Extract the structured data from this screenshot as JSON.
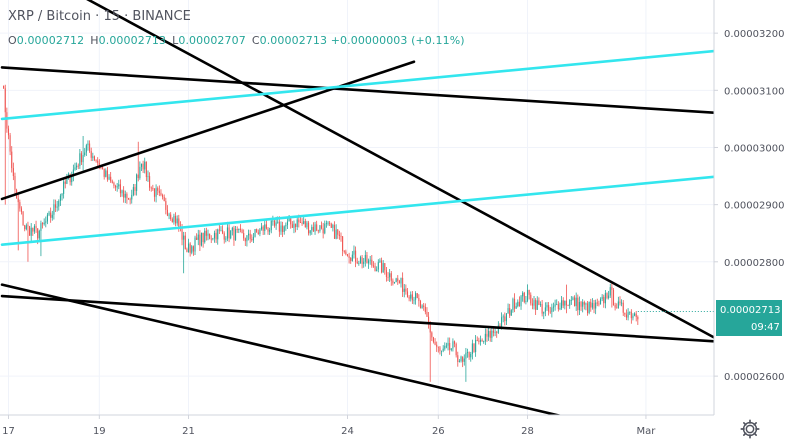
{
  "header": {
    "symbol": "XRP / Bitcoin",
    "interval": "15",
    "exchange": "BINANCE",
    "separator": "·"
  },
  "ohlc": {
    "o_label": "O",
    "o_value": "0.00002712",
    "h_label": "H",
    "h_value": "0.00002713",
    "l_label": "L",
    "l_value": "0.00002707",
    "c_label": "C",
    "c_value": "0.00002713",
    "change": "+0.00000003 (+0.11%)"
  },
  "price_badge": {
    "price": "0.00002713",
    "countdown": "09:47"
  },
  "colors": {
    "up": "#26a69a",
    "down": "#ef5350",
    "trendline": "#000000",
    "channel": "#33e6ee",
    "badge": "#26a69a",
    "axis_text": "#50535e"
  },
  "settings_icon": "gear-icon",
  "chart_data": {
    "type": "candlestick",
    "title": "XRP / Bitcoin · 15 · BINANCE",
    "y_ticks": [
      "0.00003200",
      "0.00003100",
      "0.00003000",
      "0.00002900",
      "0.00002800",
      "0.00002600"
    ],
    "y_tick_values": [
      3.2e-05,
      3.1e-05,
      3e-05,
      2.9e-05,
      2.8e-05,
      2.6e-05
    ],
    "x_ticks": [
      "17",
      "19",
      "21",
      "24",
      "26",
      "28",
      "Mar"
    ],
    "x_tick_index": [
      4,
      60,
      115,
      213,
      269,
      324,
      397
    ],
    "ylim": [
      2.532e-05,
      3.258e-05
    ],
    "last_price": 2.713e-05,
    "close_path_anchors": [
      [
        0,
        3.12e-05
      ],
      [
        3,
        3.04e-05
      ],
      [
        8,
        2.92e-05
      ],
      [
        14,
        2.86e-05
      ],
      [
        22,
        2.85e-05
      ],
      [
        30,
        2.88e-05
      ],
      [
        38,
        2.93e-05
      ],
      [
        46,
        2.97e-05
      ],
      [
        52,
        3e-05
      ],
      [
        58,
        2.98e-05
      ],
      [
        66,
        2.94e-05
      ],
      [
        74,
        2.92e-05
      ],
      [
        80,
        2.91e-05
      ],
      [
        86,
        2.98e-05
      ],
      [
        92,
        2.93e-05
      ],
      [
        100,
        2.9e-05
      ],
      [
        108,
        2.87e-05
      ],
      [
        114,
        2.82e-05
      ],
      [
        122,
        2.84e-05
      ],
      [
        132,
        2.85e-05
      ],
      [
        142,
        2.85e-05
      ],
      [
        152,
        2.84e-05
      ],
      [
        162,
        2.86e-05
      ],
      [
        172,
        2.86e-05
      ],
      [
        182,
        2.87e-05
      ],
      [
        190,
        2.86e-05
      ],
      [
        200,
        2.86e-05
      ],
      [
        206,
        2.85e-05
      ],
      [
        210,
        2.83e-05
      ],
      [
        216,
        2.81e-05
      ],
      [
        224,
        2.8e-05
      ],
      [
        234,
        2.79e-05
      ],
      [
        242,
        2.77e-05
      ],
      [
        250,
        2.75e-05
      ],
      [
        254,
        2.74e-05
      ],
      [
        258,
        2.72e-05
      ],
      [
        262,
        2.7e-05
      ],
      [
        266,
        2.66e-05
      ],
      [
        270,
        2.64e-05
      ],
      [
        278,
        2.65e-05
      ],
      [
        284,
        2.62e-05
      ],
      [
        290,
        2.65e-05
      ],
      [
        296,
        2.66e-05
      ],
      [
        304,
        2.68e-05
      ],
      [
        310,
        2.7e-05
      ],
      [
        316,
        2.73e-05
      ],
      [
        324,
        2.74e-05
      ],
      [
        332,
        2.72e-05
      ],
      [
        338,
        2.71e-05
      ],
      [
        344,
        2.73e-05
      ],
      [
        352,
        2.73e-05
      ],
      [
        360,
        2.72e-05
      ],
      [
        368,
        2.72e-05
      ],
      [
        374,
        2.75e-05
      ],
      [
        380,
        2.72e-05
      ],
      [
        388,
        2.71e-05
      ],
      [
        392,
        2.71e-05
      ]
    ],
    "spikes": [
      [
        2,
        3.06e-05,
        2.9e-05
      ],
      [
        10,
        2.89e-05,
        2.82e-05
      ],
      [
        16,
        2.86e-05,
        2.8e-05
      ],
      [
        24,
        2.84e-05,
        2.81e-05
      ],
      [
        50,
        3.02e-05,
        2.96e-05
      ],
      [
        84,
        3.01e-05,
        2.96e-05
      ],
      [
        112,
        2.83e-05,
        2.78e-05
      ],
      [
        210,
        2.84e-05,
        2.81e-05
      ],
      [
        264,
        2.64e-05,
        2.59e-05
      ],
      [
        286,
        2.63e-05,
        2.59e-05
      ],
      [
        348,
        2.76e-05,
        2.71e-05
      ],
      [
        376,
        2.76e-05,
        2.72e-05
      ]
    ],
    "trendlines": [
      {
        "name": "descending-trendline-upper",
        "color": "#000000",
        "from": [
          0,
          3.34e-05
        ],
        "to": [
          444,
          2.66e-05
        ]
      },
      {
        "name": "descending-trendline-lower",
        "color": "#000000",
        "from": [
          0,
          2.76e-05
        ],
        "to": [
          360,
          2.52e-05
        ]
      },
      {
        "name": "horizontal-trendline-top",
        "color": "#000000",
        "from": [
          0,
          3.14e-05
        ],
        "to": [
          444,
          3.06e-05
        ]
      },
      {
        "name": "horizontal-trendline-mid",
        "color": "#000000",
        "from": [
          0,
          2.74e-05
        ],
        "to": [
          444,
          2.66e-05
        ]
      },
      {
        "name": "ascending-trendline",
        "color": "#000000",
        "from": [
          0,
          2.91e-05
        ],
        "to": [
          254,
          3.15e-05
        ]
      },
      {
        "name": "channel-line-upper",
        "color": "#33e6ee",
        "from": [
          0,
          3.05e-05
        ],
        "to": [
          444,
          3.17e-05
        ]
      },
      {
        "name": "channel-line-lower",
        "color": "#33e6ee",
        "from": [
          0,
          2.83e-05
        ],
        "to": [
          444,
          2.95e-05
        ]
      }
    ]
  }
}
